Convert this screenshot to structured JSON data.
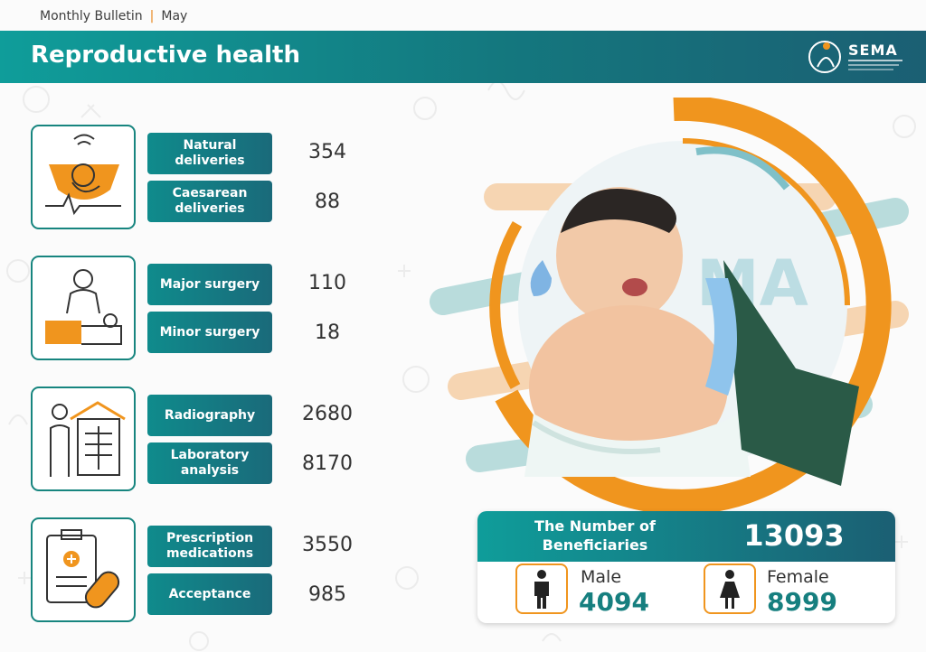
{
  "header": {
    "bulletin": "Monthly Bulletin",
    "month": "May",
    "title": "Reproductive health",
    "logo_text": "SEMA"
  },
  "services": [
    {
      "label": "Natural deliveries",
      "value": "354"
    },
    {
      "label": "Caesarean deliveries",
      "value": "88"
    },
    {
      "label": "Major surgery",
      "value": "110"
    },
    {
      "label": "Minor surgery",
      "value": "18"
    },
    {
      "label": "Radiography",
      "value": "2680"
    },
    {
      "label": "Laboratory analysis",
      "value": "8170"
    },
    {
      "label": "Prescription medications",
      "value": "3550"
    },
    {
      "label": "Acceptance",
      "value": "985"
    }
  ],
  "beneficiaries": {
    "label": "The Number of Beneficiaries",
    "total": "13093",
    "male_label": "Male",
    "male_value": "4094",
    "female_label": "Female",
    "female_value": "8999"
  },
  "colors": {
    "teal": "#17857f",
    "orange": "#f0951e",
    "banner_dark": "#1b5f73"
  },
  "icons": [
    "ultrasound-icon",
    "surgery-icon",
    "radiography-icon",
    "prescription-icon",
    "male-icon",
    "female-icon"
  ]
}
